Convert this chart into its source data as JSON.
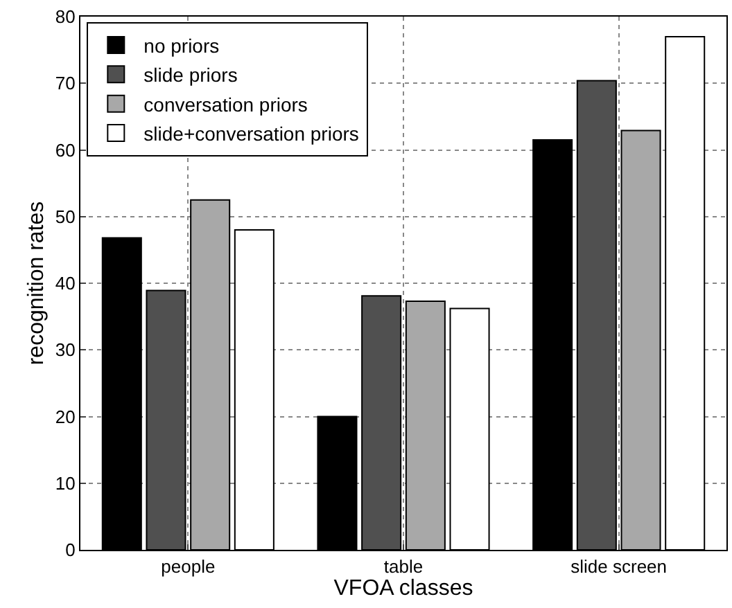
{
  "chart_data": {
    "type": "bar",
    "xlabel": "VFOA classes",
    "ylabel": "recognition rates",
    "categories": [
      "people",
      "table",
      "slide screen"
    ],
    "series": [
      {
        "name": "no priors",
        "color": "#000000",
        "values": [
          46.8,
          20,
          61.5
        ]
      },
      {
        "name": "slide priors",
        "color": "#505050",
        "values": [
          38.9,
          38.1,
          70.4
        ]
      },
      {
        "name": "conversation priors",
        "color": "#a8a8a8",
        "values": [
          52.5,
          37.3,
          62.9
        ]
      },
      {
        "name": "slide+conversation priors",
        "color": "#ffffff",
        "values": [
          48,
          36.2,
          77
        ]
      }
    ],
    "ylim": [
      0,
      80
    ],
    "yticks": [
      0,
      10,
      20,
      30,
      40,
      50,
      60,
      70,
      80
    ],
    "grid": true,
    "legend": "top left"
  }
}
